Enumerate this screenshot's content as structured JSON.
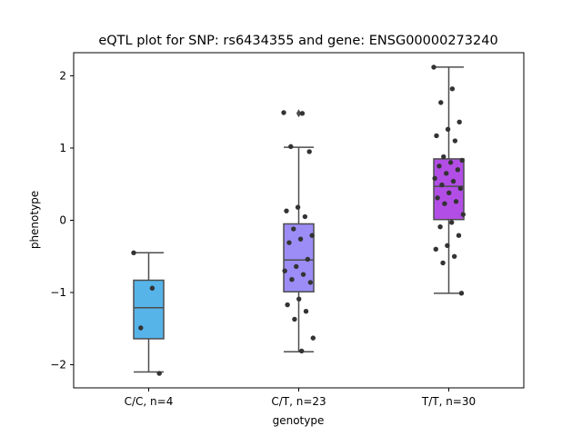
{
  "chart_data": {
    "type": "box",
    "title": "eQTL plot for SNP: rs6434355 and gene: ENSG00000273240",
    "xlabel": "genotype",
    "ylabel": "phenotype",
    "ylim": [
      -2.32,
      2.32
    ],
    "yticks": [
      -2,
      -1,
      0,
      1,
      2
    ],
    "ytick_labels": [
      "−2",
      "−1",
      "0",
      "1",
      "2"
    ],
    "grid": false,
    "categories": [
      "C/C, n=4",
      "C/T, n=23",
      "T/T, n=30"
    ],
    "colors": [
      "#56b4e9",
      "#9b8df5",
      "#b24ee6"
    ],
    "boxes": [
      {
        "q1": -1.64,
        "median": -1.21,
        "q3": -0.83,
        "whisker_low": -2.1,
        "whisker_high": -0.45,
        "outliers": []
      },
      {
        "q1": -0.99,
        "median": -0.55,
        "q3": -0.05,
        "whisker_low": -1.82,
        "whisker_high": 1.01,
        "outliers": [
          1.48
        ]
      },
      {
        "q1": 0.01,
        "median": 0.47,
        "q3": 0.85,
        "whisker_low": -1.01,
        "whisker_high": 2.12,
        "outliers": []
      }
    ],
    "points": [
      {
        "category": 0,
        "values": [
          -0.45,
          -0.94,
          -1.49,
          -2.12
        ]
      },
      {
        "category": 1,
        "values": [
          1.49,
          1.48,
          1.02,
          0.95,
          0.18,
          0.13,
          0.05,
          -0.12,
          -0.21,
          -0.26,
          -0.31,
          -0.54,
          -0.64,
          -0.7,
          -0.75,
          -0.82,
          -0.86,
          -1.09,
          -1.17,
          -1.26,
          -1.37,
          -1.63,
          -1.81
        ]
      },
      {
        "category": 2,
        "values": [
          2.12,
          1.82,
          1.63,
          1.36,
          1.26,
          1.17,
          1.1,
          0.88,
          0.83,
          0.8,
          0.75,
          0.7,
          0.65,
          0.58,
          0.54,
          0.49,
          0.44,
          0.38,
          0.31,
          0.26,
          0.23,
          0.08,
          -0.03,
          -0.09,
          -0.21,
          -0.35,
          -0.4,
          -0.5,
          -0.59,
          -1.01
        ]
      }
    ]
  }
}
